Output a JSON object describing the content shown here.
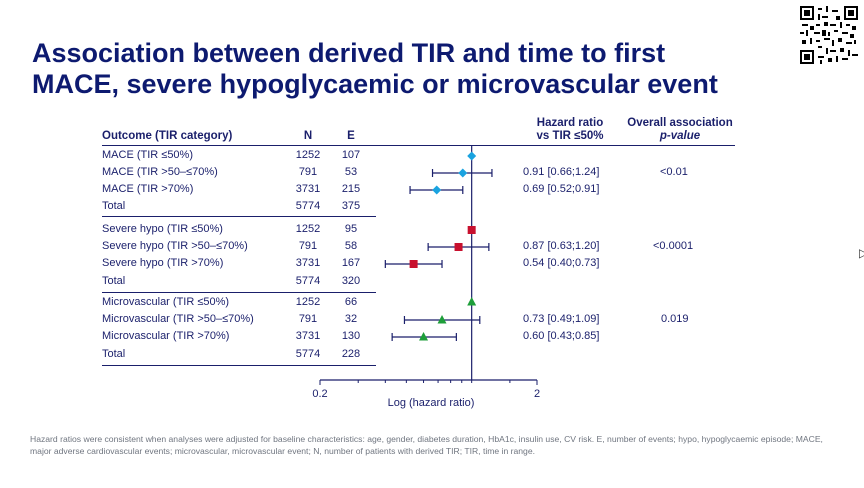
{
  "slide": {
    "title_line1": "Association between derived TIR and time to first",
    "title_line2": "MACE, severe hypoglycaemic or microvascular event",
    "footnote": "Hazard ratios were consistent when analyses were adjusted for baseline characteristics: age, gender, diabetes duration, HbA1c, insulin use, CV risk. E, number of events; hypo, hypoglycaemic episode; MACE, major adverse cardiovascular events; microvascular, microvascular event; N, number of patients with derived TIR; TIR, time in range."
  },
  "table": {
    "col_outcome": "Outcome (TIR category)",
    "col_n": "N",
    "col_e": "E",
    "col_hr_line1": "Hazard ratio",
    "col_hr_line2": "vs TIR ≤50%",
    "col_p_line1": "Overall association",
    "col_p_line2": "p-value"
  },
  "chart_data": {
    "type": "forest",
    "xlabel": "Log (hazard ratio)",
    "xscale": "log",
    "xlim": [
      0.2,
      2
    ],
    "xticks": [
      "0.2",
      "2"
    ],
    "reference_line": 1,
    "groups": [
      {
        "name": "MACE",
        "marker": "diamond",
        "color": "#1aa3e0",
        "p_value": "<0.01",
        "rows": [
          {
            "label": "MACE (TIR ≤50%)",
            "n": "1252",
            "e": "107",
            "hr": 1,
            "lo": null,
            "hi": null,
            "hr_text": ""
          },
          {
            "label": "MACE (TIR >50–≤70%)",
            "n": "791",
            "e": "53",
            "hr": 0.91,
            "lo": 0.66,
            "hi": 1.24,
            "hr_text": "0.91 [0.66;1.24]"
          },
          {
            "label": "MACE (TIR >70%)",
            "n": "3731",
            "e": "215",
            "hr": 0.69,
            "lo": 0.52,
            "hi": 0.91,
            "hr_text": "0.69 [0.52;0.91]"
          }
        ],
        "total": {
          "label": "Total",
          "n": "5774",
          "e": "375"
        }
      },
      {
        "name": "Severe hypo",
        "marker": "square",
        "color": "#c8102e",
        "p_value": "<0.0001",
        "rows": [
          {
            "label": "Severe hypo (TIR ≤50%)",
            "n": "1252",
            "e": "95",
            "hr": 1,
            "lo": null,
            "hi": null,
            "hr_text": ""
          },
          {
            "label": "Severe hypo (TIR >50–≤70%)",
            "n": "791",
            "e": "58",
            "hr": 0.87,
            "lo": 0.63,
            "hi": 1.2,
            "hr_text": "0.87 [0.63;1.20]"
          },
          {
            "label": "Severe hypo (TIR >70%)",
            "n": "3731",
            "e": "167",
            "hr": 0.54,
            "lo": 0.4,
            "hi": 0.73,
            "hr_text": "0.54 [0.40;0.73]"
          }
        ],
        "total": {
          "label": "Total",
          "n": "5774",
          "e": "320"
        }
      },
      {
        "name": "Microvascular",
        "marker": "triangle",
        "color": "#1e9e3a",
        "p_value": "0.019",
        "rows": [
          {
            "label": "Microvascular (TIR ≤50%)",
            "n": "1252",
            "e": "66",
            "hr": 1,
            "lo": null,
            "hi": null,
            "hr_text": ""
          },
          {
            "label": "Microvascular (TIR >50–≤70%)",
            "n": "791",
            "e": "32",
            "hr": 0.73,
            "lo": 0.49,
            "hi": 1.09,
            "hr_text": "0.73 [0.49;1.09]"
          },
          {
            "label": "Microvascular (TIR >70%)",
            "n": "3731",
            "e": "130",
            "hr": 0.6,
            "lo": 0.43,
            "hi": 0.85,
            "hr_text": "0.60 [0.43;0.85]"
          }
        ],
        "total": {
          "label": "Total",
          "n": "5774",
          "e": "228"
        }
      }
    ]
  }
}
